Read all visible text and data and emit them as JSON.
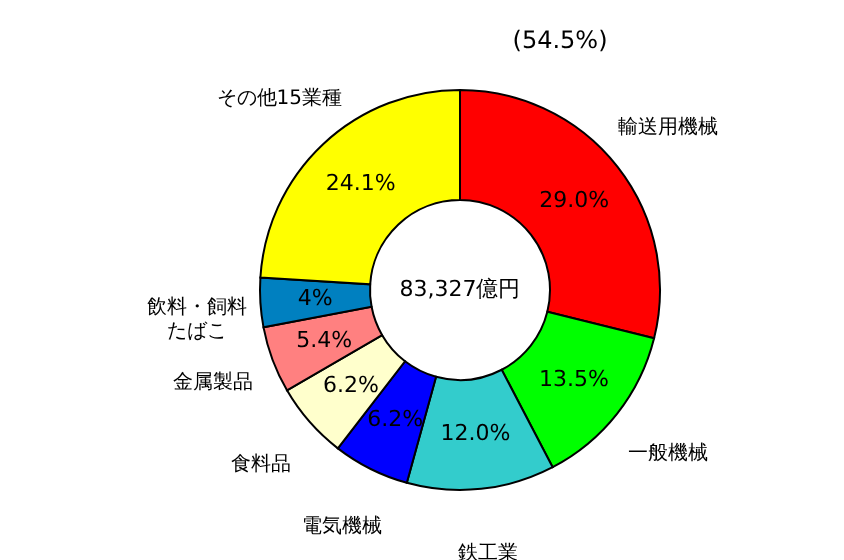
{
  "chart_data": {
    "type": "donut",
    "categories": [
      "輸送用機械",
      "一般機械",
      "鉄工業",
      "電気機械",
      "食料品",
      "金属製品",
      "飲料・飼料たばこ",
      "その他15業種"
    ],
    "values": [
      29.0,
      13.5,
      12.0,
      6.2,
      6.2,
      5.4,
      4,
      24.1
    ],
    "value_labels": [
      "29.0%",
      "13.5%",
      "12.0%",
      "6.2%",
      "6.2%",
      "5.4%",
      "4%",
      "24.1%"
    ],
    "colors": [
      "#ff0000",
      "#00ff00",
      "#33cccc",
      "#0000ff",
      "#ffffcc",
      "#ff8080",
      "#0080c0",
      "#ffff00"
    ],
    "annotations": [
      "83,327億円",
      "(54.5%)"
    ]
  }
}
